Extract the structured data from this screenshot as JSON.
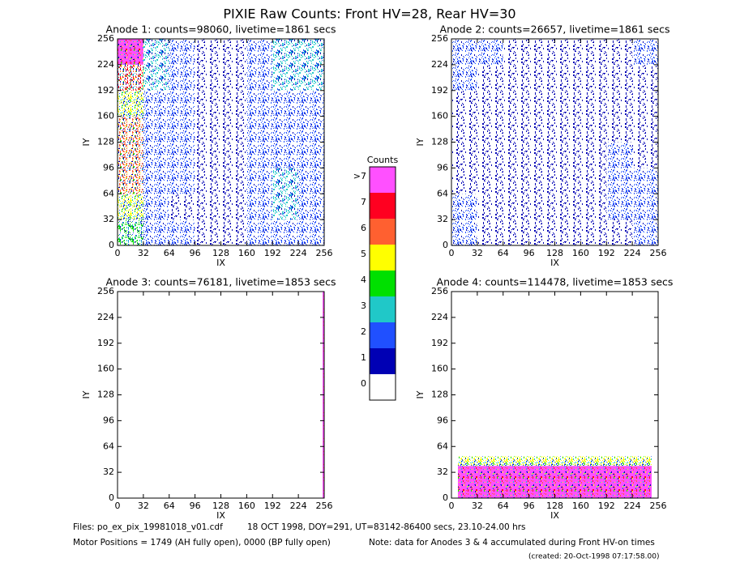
{
  "title": "PIXIE Raw Counts:  Front HV=28, Rear HV=30",
  "chart_data": [
    {
      "type": "heatmap",
      "title": "Anode 1: counts=98060, livetime=1861 secs",
      "xlabel": "IX",
      "ylabel": "IY",
      "xlim": [
        0,
        256
      ],
      "ylim": [
        0,
        256
      ],
      "xticks": [
        0,
        32,
        64,
        96,
        128,
        160,
        192,
        224,
        256
      ],
      "yticks": [
        0,
        32,
        64,
        96,
        128,
        160,
        192,
        224,
        256
      ],
      "xbins": [
        0,
        32,
        64,
        96,
        128,
        160,
        192,
        224,
        256
      ],
      "ybins": [
        0,
        32,
        64,
        96,
        128,
        160,
        192,
        224,
        256
      ],
      "z": [
        [
          4,
          2,
          2,
          1,
          1,
          2,
          2,
          2
        ],
        [
          5,
          2,
          1,
          1,
          1,
          2,
          3,
          2
        ],
        [
          6,
          2,
          2,
          1,
          1,
          2,
          3,
          2
        ],
        [
          6,
          2,
          2,
          1,
          1,
          2,
          2,
          2
        ],
        [
          6,
          2,
          2,
          1,
          1,
          2,
          2,
          2
        ],
        [
          5,
          2,
          2,
          1,
          1,
          2,
          2,
          2
        ],
        [
          7,
          3,
          2,
          1,
          1,
          2,
          3,
          3
        ],
        [
          8,
          3,
          2,
          1,
          1,
          2,
          3,
          3
        ]
      ]
    },
    {
      "type": "heatmap",
      "title": "Anode 2: counts=26657, livetime=1861 secs",
      "xlabel": "IX",
      "ylabel": "IY",
      "xlim": [
        0,
        256
      ],
      "ylim": [
        0,
        256
      ],
      "xticks": [
        0,
        32,
        64,
        96,
        128,
        160,
        192,
        224,
        256
      ],
      "yticks": [
        0,
        32,
        64,
        96,
        128,
        160,
        192,
        224,
        256
      ],
      "xbins": [
        0,
        32,
        64,
        96,
        128,
        160,
        192,
        224,
        256
      ],
      "ybins": [
        0,
        32,
        64,
        96,
        128,
        160,
        192,
        224,
        256
      ],
      "z": [
        [
          2,
          1,
          1,
          1,
          1,
          1,
          1,
          2
        ],
        [
          2,
          1,
          1,
          1,
          1,
          1,
          2,
          2
        ],
        [
          1,
          1,
          1,
          1,
          1,
          1,
          2,
          2
        ],
        [
          1,
          1,
          1,
          1,
          1,
          1,
          2,
          1
        ],
        [
          1,
          1,
          1,
          1,
          1,
          1,
          1,
          1
        ],
        [
          1,
          1,
          1,
          1,
          1,
          1,
          1,
          1
        ],
        [
          2,
          1,
          1,
          1,
          1,
          1,
          1,
          1
        ],
        [
          2,
          2,
          1,
          1,
          1,
          1,
          1,
          2
        ]
      ]
    },
    {
      "type": "heatmap",
      "title": "Anode 3: counts=76181, livetime=1853 secs",
      "xlabel": "IX",
      "ylabel": "IY",
      "xlim": [
        0,
        256
      ],
      "ylim": [
        0,
        256
      ],
      "xticks": [
        0,
        32,
        64,
        96,
        128,
        160,
        192,
        224,
        256
      ],
      "yticks": [
        0,
        32,
        64,
        96,
        128,
        160,
        192,
        224,
        256
      ],
      "xbins": [
        0,
        254,
        256
      ],
      "ybins": [
        0,
        256
      ],
      "z": [
        [
          0,
          8
        ]
      ]
    },
    {
      "type": "heatmap",
      "title": "Anode 4: counts=114478, livetime=1853 secs",
      "xlabel": "IX",
      "ylabel": "IY",
      "xlim": [
        0,
        256
      ],
      "ylim": [
        0,
        256
      ],
      "xticks": [
        0,
        32,
        64,
        96,
        128,
        160,
        192,
        224,
        256
      ],
      "yticks": [
        0,
        32,
        64,
        96,
        128,
        160,
        192,
        224,
        256
      ],
      "xbins": [
        0,
        8,
        248,
        256
      ],
      "ybins": [
        0,
        40,
        52,
        256
      ],
      "z": [
        [
          0,
          8,
          0
        ],
        [
          0,
          5,
          0
        ],
        [
          0,
          0,
          0
        ]
      ]
    }
  ],
  "colorbar": {
    "title": "Counts",
    "levels": [
      0,
      1,
      2,
      3,
      4,
      5,
      6,
      7,
      {
        "value": 8,
        "label": ">7"
      }
    ],
    "colors": [
      "#ffffff",
      "#0000b4",
      "#2050ff",
      "#20c8c8",
      "#00e000",
      "#ffff00",
      "#ff6030",
      "#ff0020",
      "#ff50ff"
    ]
  },
  "footer": {
    "files": "Files: po_ex_pix_19981018_v01.cdf",
    "date_info": "18 OCT 1998, DOY=291, UT=83142-86400 secs, 23.10-24.00 hrs",
    "motor": "Motor Positions = 1749 (AH fully open), 0000 (BP fully open)",
    "note": "Note: data for Anodes 3 & 4 accumulated during Front HV-on times",
    "created": "(created: 20-Oct-1998 07:17:58.00)"
  }
}
